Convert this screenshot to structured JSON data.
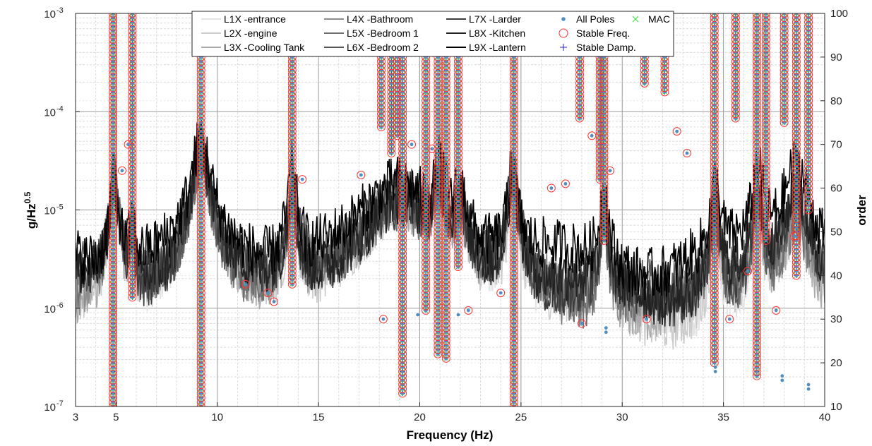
{
  "chart_data": {
    "type": "line",
    "xlabel": "Frequency (Hz)",
    "ylabel_left_base": "g/Hz",
    "ylabel_left_exp": "0.5",
    "ylabel_right": "order",
    "xlim": [
      3,
      40
    ],
    "ylim_left": [
      1e-07,
      0.001
    ],
    "ylim_right": [
      10,
      100
    ],
    "y_scale_left": "log",
    "grid": true,
    "legend_location": "top",
    "x_ticks": [
      {
        "v": 3,
        "label": "3"
      },
      {
        "v": 5,
        "label": "5"
      },
      {
        "v": 10,
        "label": "10"
      },
      {
        "v": 15,
        "label": "15"
      },
      {
        "v": 20,
        "label": "20"
      },
      {
        "v": 25,
        "label": "25"
      },
      {
        "v": 30,
        "label": "30"
      },
      {
        "v": 35,
        "label": "35"
      },
      {
        "v": 40,
        "label": "40"
      }
    ],
    "y_ticks_left": [
      {
        "exp": -7,
        "label": "10",
        "sup": "-7"
      },
      {
        "exp": -6,
        "label": "10",
        "sup": "-6"
      },
      {
        "exp": -5,
        "label": "10",
        "sup": "-5"
      },
      {
        "exp": -4,
        "label": "10",
        "sup": "-4"
      },
      {
        "exp": -3,
        "label": "10",
        "sup": "-3"
      }
    ],
    "y_ticks_right": [
      {
        "v": 10,
        "label": "10"
      },
      {
        "v": 20,
        "label": "20"
      },
      {
        "v": 30,
        "label": "30"
      },
      {
        "v": 40,
        "label": "40"
      },
      {
        "v": 50,
        "label": "50"
      },
      {
        "v": 60,
        "label": "60"
      },
      {
        "v": 70,
        "label": "70"
      },
      {
        "v": 80,
        "label": "80"
      },
      {
        "v": 90,
        "label": "90"
      },
      {
        "v": 100,
        "label": "100"
      }
    ],
    "series": [
      {
        "name": "L1X -entrance",
        "color": "#e3e3e3",
        "base": 7e-07,
        "amp": [
          1.0,
          1.0,
          1.2,
          1.0,
          2.5,
          1.5,
          1.2,
          1.0,
          1.2,
          1.0,
          0.8,
          1.0,
          0.9
        ]
      },
      {
        "name": "L2X -engine",
        "color": "#cccccc",
        "base": 6e-07,
        "amp": [
          1.0,
          1.0,
          1.2,
          1.0,
          2.0,
          1.5,
          1.2,
          1.0,
          1.5,
          1.0,
          0.8,
          1.2,
          1.0
        ]
      },
      {
        "name": "L3X -Cooling Tank",
        "color": "#aaaaaa",
        "base": 8e-07,
        "amp": [
          1.0,
          0.8,
          1.0,
          1.2,
          2.0,
          1.5,
          1.0,
          1.5,
          1.2,
          1.2,
          1.0,
          1.0,
          1.0
        ]
      },
      {
        "name": "L4X -Bathroom",
        "color": "#8c8c8c",
        "base": 1e-06,
        "amp": [
          1.0,
          1.0,
          1.0,
          1.0,
          2.5,
          2.0,
          1.0,
          1.5,
          1.0,
          2.0,
          1.5,
          1.5,
          2.0
        ]
      },
      {
        "name": "L5X -Bedroom 1",
        "color": "#707070",
        "base": 9e-07,
        "amp": [
          1.0,
          1.2,
          1.0,
          1.0,
          2.0,
          2.0,
          1.0,
          1.5,
          1.0,
          1.5,
          1.5,
          1.0,
          2.0
        ]
      },
      {
        "name": "L6X -Bedroom 2",
        "color": "#555555",
        "base": 1.1e-06,
        "amp": [
          1.0,
          1.2,
          1.0,
          1.5,
          2.5,
          1.5,
          1.2,
          2.0,
          1.2,
          1.5,
          1.2,
          1.5,
          2.5
        ]
      },
      {
        "name": "L7X -Larder",
        "color": "#3a3a3a",
        "base": 1e-06,
        "amp": [
          1.0,
          1.0,
          1.2,
          1.2,
          2.0,
          1.5,
          1.0,
          2.0,
          1.0,
          2.0,
          1.5,
          2.0,
          2.5
        ]
      },
      {
        "name": "L8X -Kitchen",
        "color": "#222222",
        "base": 1.2e-06,
        "amp": [
          1.0,
          1.2,
          1.2,
          1.5,
          2.0,
          1.5,
          1.5,
          1.5,
          1.2,
          2.0,
          2.0,
          2.0,
          3.0
        ]
      },
      {
        "name": "L9X -Lantern",
        "color": "#000000",
        "base": 2.5e-06,
        "amp": [
          1.0,
          1.2,
          1.5,
          2.0,
          3.0,
          3.0,
          2.0,
          1.5,
          2.5,
          3.0,
          3.0,
          4.0,
          6.0
        ]
      }
    ],
    "psd_peaks": [
      {
        "f": 4.9,
        "a": 5.5e-05,
        "w": 0.18
      },
      {
        "f": 5.8,
        "a": 1.2e-05,
        "w": 0.12
      },
      {
        "f": 9.2,
        "a": 0.0001,
        "w": 0.35
      },
      {
        "f": 13.7,
        "a": 3.5e-05,
        "w": 0.18
      },
      {
        "f": 19.0,
        "a": 1.5e-05,
        "w": 1.5
      },
      {
        "f": 21.0,
        "a": 2.2e-05,
        "w": 0.25
      },
      {
        "f": 22.0,
        "a": 1.8e-05,
        "w": 0.3
      },
      {
        "f": 24.6,
        "a": 4e-05,
        "w": 0.2
      },
      {
        "f": 29.1,
        "a": 2e-05,
        "w": 0.15
      },
      {
        "f": 34.6,
        "a": 1.5e-05,
        "w": 0.2
      },
      {
        "f": 36.7,
        "a": 2.5e-05,
        "w": 0.2
      },
      {
        "f": 38.6,
        "a": 2e-05,
        "w": 0.5
      }
    ],
    "stable_columns": [
      {
        "f": 4.85,
        "order_from": 10,
        "order_to": 100
      },
      {
        "f": 5.8,
        "order_from": 35,
        "order_to": 100
      },
      {
        "f": 9.2,
        "order_from": 10,
        "order_to": 100
      },
      {
        "f": 13.7,
        "order_from": 38,
        "order_to": 100
      },
      {
        "f": 18.1,
        "order_from": 74,
        "order_to": 100
      },
      {
        "f": 18.6,
        "order_from": 68,
        "order_to": 100
      },
      {
        "f": 18.9,
        "order_from": 72,
        "order_to": 100
      },
      {
        "f": 19.15,
        "order_from": 13,
        "order_to": 100
      },
      {
        "f": 20.3,
        "order_from": 32,
        "order_to": 100
      },
      {
        "f": 20.9,
        "order_from": 22,
        "order_to": 100
      },
      {
        "f": 21.3,
        "order_from": 21,
        "order_to": 100
      },
      {
        "f": 21.9,
        "order_from": 42,
        "order_to": 100
      },
      {
        "f": 24.65,
        "order_from": 10,
        "order_to": 100
      },
      {
        "f": 27.9,
        "order_from": 76,
        "order_to": 100
      },
      {
        "f": 28.9,
        "order_from": 62,
        "order_to": 100
      },
      {
        "f": 29.1,
        "order_from": 48,
        "order_to": 100
      },
      {
        "f": 31.1,
        "order_from": 84,
        "order_to": 100
      },
      {
        "f": 32.1,
        "order_from": 82,
        "order_to": 100
      },
      {
        "f": 34.55,
        "order_from": 20,
        "order_to": 100
      },
      {
        "f": 35.6,
        "order_from": 76,
        "order_to": 100
      },
      {
        "f": 36.65,
        "order_from": 17,
        "order_to": 100
      },
      {
        "f": 37.1,
        "order_from": 48,
        "order_to": 100
      },
      {
        "f": 38.0,
        "order_from": 75,
        "order_to": 100
      },
      {
        "f": 38.6,
        "order_from": 40,
        "order_to": 100
      },
      {
        "f": 39.2,
        "order_from": 55,
        "order_to": 100
      }
    ],
    "scattered_poles": [
      {
        "f": 5.3,
        "order": 64
      },
      {
        "f": 5.6,
        "order": 70
      },
      {
        "f": 11.4,
        "order": 38
      },
      {
        "f": 12.5,
        "order": 36
      },
      {
        "f": 12.8,
        "order": 34
      },
      {
        "f": 14.2,
        "order": 62
      },
      {
        "f": 17.1,
        "order": 63
      },
      {
        "f": 18.2,
        "order": 30
      },
      {
        "f": 19.6,
        "order": 70
      },
      {
        "f": 20.6,
        "order": 69
      },
      {
        "f": 22.4,
        "order": 32
      },
      {
        "f": 24.0,
        "order": 36
      },
      {
        "f": 26.5,
        "order": 60
      },
      {
        "f": 27.2,
        "order": 61
      },
      {
        "f": 28.0,
        "order": 29
      },
      {
        "f": 28.5,
        "order": 72
      },
      {
        "f": 29.4,
        "order": 64
      },
      {
        "f": 31.2,
        "order": 30
      },
      {
        "f": 32.7,
        "order": 73
      },
      {
        "f": 33.2,
        "order": 68
      },
      {
        "f": 35.3,
        "order": 30
      },
      {
        "f": 36.2,
        "order": 41
      },
      {
        "f": 37.6,
        "order": 32
      },
      {
        "f": 38.5,
        "order": 49
      }
    ],
    "unstable_poles": [
      {
        "f": 19.9,
        "order": 31
      },
      {
        "f": 21.9,
        "order": 31
      },
      {
        "f": 29.2,
        "order": 27
      },
      {
        "f": 29.2,
        "order": 28
      },
      {
        "f": 34.6,
        "order": 18
      },
      {
        "f": 34.6,
        "order": 19
      },
      {
        "f": 37.9,
        "order": 16
      },
      {
        "f": 37.9,
        "order": 17
      },
      {
        "f": 39.2,
        "order": 14
      },
      {
        "f": 39.2,
        "order": 15
      }
    ],
    "legend": [
      {
        "label": "L1X -entrance",
        "kind": "line",
        "color": "#e3e3e3"
      },
      {
        "label": "L2X -engine",
        "kind": "line",
        "color": "#cccccc"
      },
      {
        "label": "L3X -Cooling Tank",
        "kind": "line",
        "color": "#aaaaaa"
      },
      {
        "label": "L4X -Bathroom",
        "kind": "line",
        "color": "#8c8c8c"
      },
      {
        "label": "L5X -Bedroom 1",
        "kind": "line",
        "color": "#707070"
      },
      {
        "label": "L6X -Bedroom 2",
        "kind": "line",
        "color": "#555555"
      },
      {
        "label": "L7X -Larder",
        "kind": "line",
        "color": "#3a3a3a"
      },
      {
        "label": "L8X -Kitchen",
        "kind": "line",
        "color": "#222222"
      },
      {
        "label": "L9X -Lantern",
        "kind": "line",
        "color": "#000000"
      },
      {
        "label": "All Poles",
        "kind": "dot",
        "color": "#4f8fc0"
      },
      {
        "label": "Stable Freq.",
        "kind": "circle",
        "color": "#ff3333"
      },
      {
        "label": "Stable Damp.",
        "kind": "plus",
        "color": "#2222cc"
      },
      {
        "label": "MAC",
        "kind": "cross",
        "color": "#33dd33"
      }
    ]
  }
}
